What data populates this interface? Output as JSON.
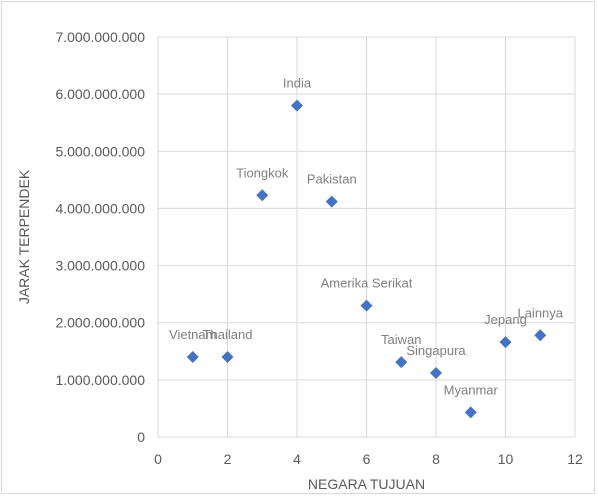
{
  "chart_data": {
    "type": "scatter",
    "title": "",
    "xlabel": "NEGARA TUJUAN",
    "ylabel": "JARAK TERPENDEK",
    "xlim": [
      0,
      12
    ],
    "ylim": [
      0,
      7000000000
    ],
    "x_ticks": [
      0,
      2,
      4,
      6,
      8,
      10,
      12
    ],
    "x_tick_labels": [
      "0",
      "2",
      "4",
      "6",
      "8",
      "10",
      "12"
    ],
    "y_ticks": [
      0,
      1000000000,
      2000000000,
      3000000000,
      4000000000,
      5000000000,
      6000000000,
      7000000000
    ],
    "y_tick_labels": [
      "0",
      "1.000.000.000",
      "2.000.000.000",
      "3.000.000.000",
      "4.000.000.000",
      "5.000.000.000",
      "6.000.000.000",
      "7.000.000.000"
    ],
    "grid": true,
    "marker_color": "#4472c4",
    "points": [
      {
        "x": 1,
        "y": 1400000000,
        "label": "Vietnam"
      },
      {
        "x": 2,
        "y": 1400000000,
        "label": "Thailand"
      },
      {
        "x": 3,
        "y": 4230000000,
        "label": "Tiongkok"
      },
      {
        "x": 4,
        "y": 5800000000,
        "label": "India"
      },
      {
        "x": 5,
        "y": 4120000000,
        "label": "Pakistan"
      },
      {
        "x": 6,
        "y": 2300000000,
        "label": "Amerika Serikat"
      },
      {
        "x": 7,
        "y": 1310000000,
        "label": "Taiwan"
      },
      {
        "x": 8,
        "y": 1120000000,
        "label": "Singapura"
      },
      {
        "x": 9,
        "y": 430000000,
        "label": "Myanmar"
      },
      {
        "x": 10,
        "y": 1660000000,
        "label": "Jepang"
      },
      {
        "x": 11,
        "y": 1780000000,
        "label": "Lainnya"
      }
    ]
  }
}
